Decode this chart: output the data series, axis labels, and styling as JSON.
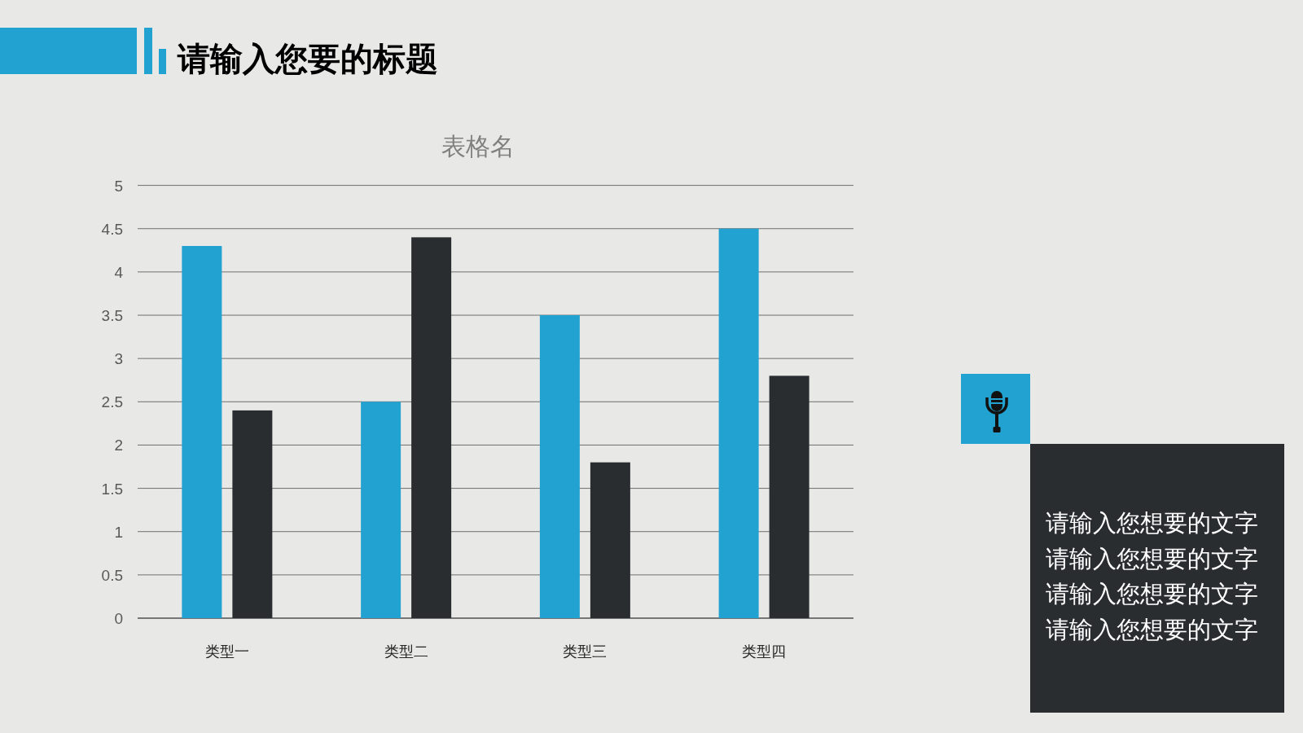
{
  "chart_data": [
    {
      "type": "bar",
      "title": "请输入您要的标题",
      "subtitle": "表格名",
      "categories": [
        "类型一",
        "类型二",
        "类型三",
        "类型四"
      ],
      "series": [
        {
          "color": "#21a2d1",
          "values": [
            4.3,
            2.5,
            3.5,
            4.5
          ]
        },
        {
          "color": "#2a2d30",
          "values": [
            2.4,
            4.4,
            1.8,
            2.8
          ]
        }
      ],
      "ylim": [
        0,
        5
      ],
      "yticks": [
        0,
        0.5,
        1,
        1.5,
        2,
        2.5,
        3,
        3.5,
        4,
        4.5,
        5
      ],
      "grid": "y"
    },
    {
      "type": "other",
      "annotations": [
        "请输入您想要的文字",
        "请输入您想要的文字",
        "请输入您想要的文字",
        "请输入您想要的文字"
      ]
    }
  ]
}
